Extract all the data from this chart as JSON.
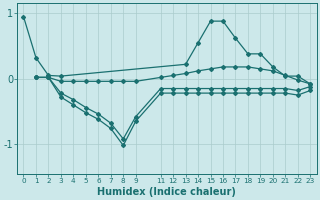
{
  "xlabel": "Humidex (Indice chaleur)",
  "bg_color": "#cce8ea",
  "grid_color": "#aacccc",
  "line_color": "#1a7070",
  "xlim": [
    -0.5,
    23.5
  ],
  "ylim": [
    -1.45,
    1.15
  ],
  "yticks": [
    -1,
    0,
    1
  ],
  "ytick_labels": [
    "-1",
    "0",
    "1"
  ],
  "xtick_positions": [
    0,
    1,
    2,
    3,
    4,
    5,
    6,
    7,
    8,
    9,
    11,
    12,
    13,
    14,
    15,
    16,
    17,
    18,
    19,
    20,
    21,
    22,
    23
  ],
  "xtick_labels": [
    "0",
    "1",
    "2",
    "3",
    "4",
    "5",
    "6",
    "7",
    "8",
    "9",
    "11",
    "12",
    "13",
    "14",
    "15",
    "16",
    "17",
    "18",
    "19",
    "20",
    "21",
    "22",
    "23"
  ],
  "series": [
    {
      "x": [
        0,
        1,
        2,
        3,
        13,
        14,
        15,
        16,
        17,
        18,
        19,
        20,
        21,
        22,
        23
      ],
      "y": [
        0.95,
        0.32,
        0.05,
        0.04,
        0.22,
        0.55,
        0.88,
        0.88,
        0.62,
        0.38,
        0.38,
        0.18,
        0.04,
        0.04,
        -0.08
      ]
    },
    {
      "x": [
        1,
        2,
        3,
        4,
        5,
        6,
        7,
        8,
        9,
        11,
        12,
        13,
        14,
        15,
        16,
        17,
        18,
        19,
        20,
        21,
        22,
        23
      ],
      "y": [
        0.02,
        0.02,
        -0.04,
        -0.04,
        -0.04,
        -0.04,
        -0.04,
        -0.04,
        -0.04,
        0.02,
        0.05,
        0.08,
        0.12,
        0.15,
        0.18,
        0.18,
        0.18,
        0.15,
        0.12,
        0.05,
        -0.02,
        -0.08
      ]
    },
    {
      "x": [
        1,
        2,
        3,
        4,
        5,
        6,
        7,
        8,
        9,
        11,
        12,
        13,
        14,
        15,
        16,
        17,
        18,
        19,
        20,
        21,
        22,
        23
      ],
      "y": [
        0.02,
        0.02,
        -0.28,
        -0.4,
        -0.52,
        -0.62,
        -0.76,
        -1.02,
        -0.65,
        -0.22,
        -0.22,
        -0.22,
        -0.22,
        -0.22,
        -0.22,
        -0.22,
        -0.22,
        -0.22,
        -0.22,
        -0.22,
        -0.25,
        -0.18
      ]
    },
    {
      "x": [
        1,
        2,
        3,
        4,
        5,
        6,
        7,
        8,
        9,
        11,
        12,
        13,
        14,
        15,
        16,
        17,
        18,
        19,
        20,
        21,
        22,
        23
      ],
      "y": [
        0.02,
        0.02,
        -0.22,
        -0.32,
        -0.44,
        -0.54,
        -0.68,
        -0.92,
        -0.58,
        -0.15,
        -0.15,
        -0.15,
        -0.15,
        -0.15,
        -0.15,
        -0.15,
        -0.15,
        -0.15,
        -0.15,
        -0.15,
        -0.18,
        -0.12
      ]
    }
  ]
}
